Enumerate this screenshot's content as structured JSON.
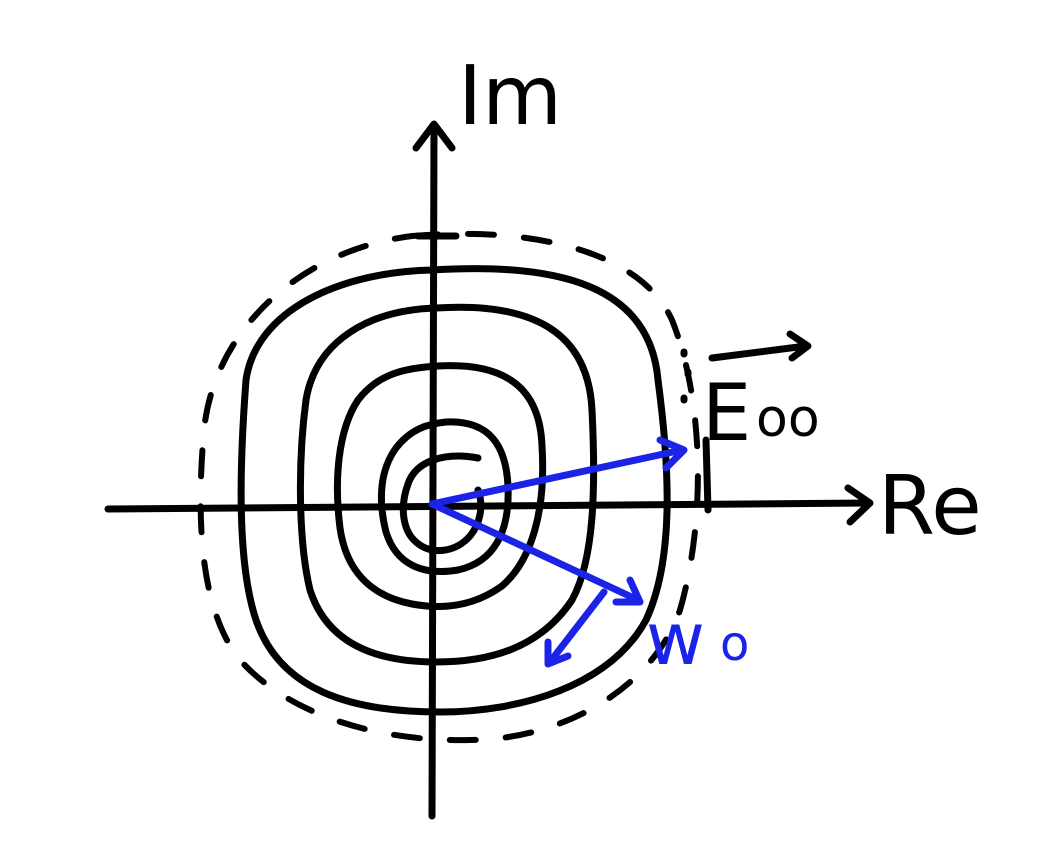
{
  "labels": {
    "imaginary_axis": "Im",
    "real_axis": "Re",
    "vector_e": "E",
    "vector_e_subscript": "oo",
    "vector_w": "w",
    "vector_w_subscript": "o"
  },
  "colors": {
    "ink": "#000000",
    "vector_blue": "#1a23e6",
    "background": "#ffffff"
  }
}
